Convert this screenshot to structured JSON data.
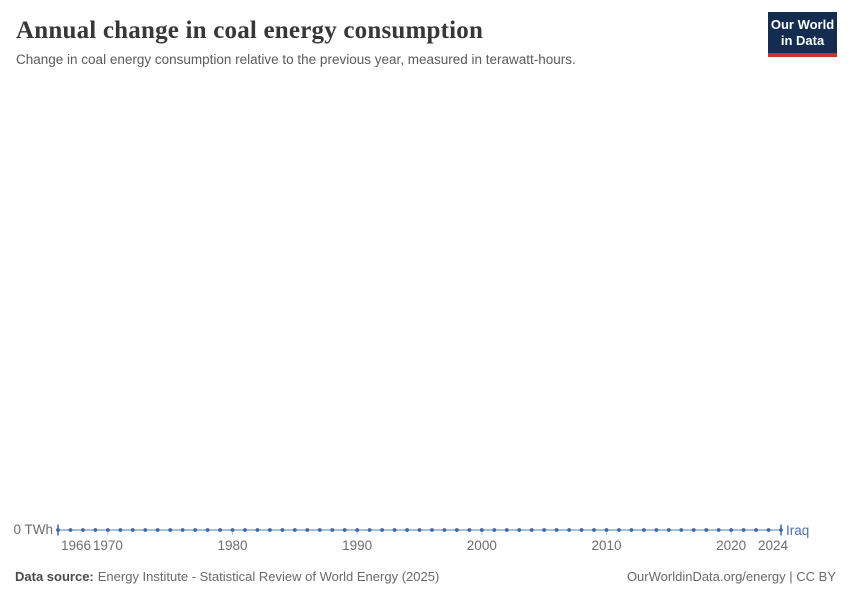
{
  "header": {
    "title": "Annual change in coal energy consumption",
    "subtitle": "Change in coal energy consumption relative to the previous year, measured in terawatt-hours.",
    "logo": {
      "line1": "Our World",
      "line2": "in Data"
    }
  },
  "chart_data": {
    "type": "line",
    "title": "Annual change in coal energy consumption",
    "unit": "TWh",
    "x": [
      1966,
      1967,
      1968,
      1969,
      1970,
      1971,
      1972,
      1973,
      1974,
      1975,
      1976,
      1977,
      1978,
      1979,
      1980,
      1981,
      1982,
      1983,
      1984,
      1985,
      1986,
      1987,
      1988,
      1989,
      1990,
      1991,
      1992,
      1993,
      1994,
      1995,
      1996,
      1997,
      1998,
      1999,
      2000,
      2001,
      2002,
      2003,
      2004,
      2005,
      2006,
      2007,
      2008,
      2009,
      2010,
      2011,
      2012,
      2013,
      2014,
      2015,
      2016,
      2017,
      2018,
      2019,
      2020,
      2021,
      2022,
      2023,
      2024
    ],
    "series": [
      {
        "name": "Iraq",
        "color": "#4C6A9C",
        "values": [
          0,
          0,
          0,
          0,
          0,
          0,
          0,
          0,
          0,
          0,
          0,
          0,
          0,
          0,
          0,
          0,
          0,
          0,
          0,
          0,
          0,
          0,
          0,
          0,
          0,
          0,
          0,
          0,
          0,
          0,
          0,
          0,
          0,
          0,
          0,
          0,
          0,
          0,
          0,
          0,
          0,
          0,
          0,
          0,
          0,
          0,
          0,
          0,
          0,
          0,
          0,
          0,
          0,
          0,
          0,
          0,
          0,
          0,
          0
        ]
      }
    ],
    "x_tick_years": [
      1966,
      1970,
      1980,
      1990,
      2000,
      2010,
      2020,
      2024
    ],
    "y_axis": {
      "zero_label": "0 TWh",
      "ylim": [
        0,
        0
      ]
    },
    "grid": false,
    "legend_position": "end-of-line",
    "markers": true
  },
  "footer": {
    "source_label": "Data source:",
    "source_text": "Energy Institute - Statistical Review of World Energy (2025)",
    "right_text": "OurWorldinData.org/energy | CC BY"
  },
  "colors": {
    "series_line": "#a3c0de",
    "series_marker": "#3f67a3",
    "entity_label": "#4e6ea6",
    "axis_text": "#6d6d6d",
    "axis_tick": "#c2c8ce",
    "title_text": "#383636",
    "subtitle_text": "#5b5b5b",
    "logo_bg": "#132c4f",
    "logo_stripe": "#c6352c",
    "footer_text": "#6a6a6a"
  }
}
